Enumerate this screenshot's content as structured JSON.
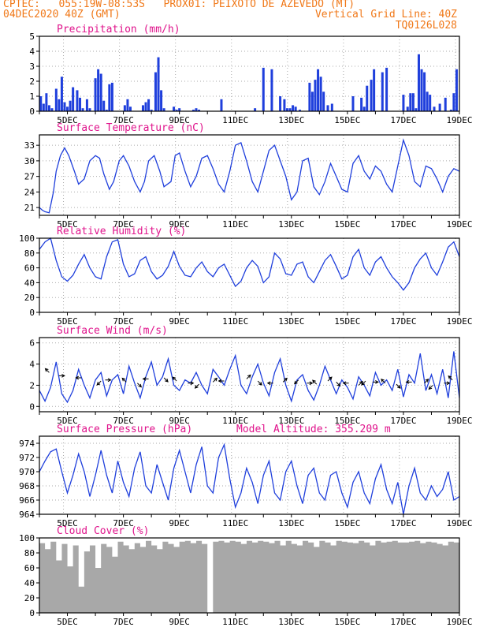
{
  "header": {
    "line1": "CPTEC:   055:19W-08:53S   PROX01: PEIXOTO DE AZEVEDO (MT)",
    "line2_left": "04DEC2020 40Z (GMT)",
    "line2_right": "Vertical Grid Line: 40Z",
    "line3_right": "TQ0126L028"
  },
  "colors": {
    "header": "#f07818",
    "title": "#e0148c",
    "series": "#1f3fdc",
    "cloud": "#a8a8a8",
    "vectors": "#000000",
    "axis": "#000000",
    "grid": "#aaaaaa"
  },
  "chart_data": [
    {
      "type": "bar",
      "title": "Precipitation (mm/h)",
      "x_tick_labels": [
        "5DEC",
        "7DEC",
        "9DEC",
        "11DEC",
        "13DEC",
        "15DEC",
        "17DEC",
        "19DEC"
      ],
      "x_tick_days": [
        5,
        7,
        9,
        11,
        13,
        15,
        17,
        19
      ],
      "xlim_days": [
        4.0,
        19.0
      ],
      "ylim": [
        0,
        5
      ],
      "y_ticks": [
        0,
        1,
        2,
        3,
        4,
        5
      ],
      "grid": true,
      "x": [
        4.05,
        4.15,
        4.25,
        4.35,
        4.45,
        4.6,
        4.7,
        4.8,
        4.9,
        5.0,
        5.1,
        5.2,
        5.35,
        5.45,
        5.55,
        5.7,
        5.8,
        6.0,
        6.1,
        6.2,
        6.3,
        6.4,
        6.5,
        6.6,
        7.05,
        7.15,
        7.25,
        7.7,
        7.8,
        7.9,
        8.0,
        8.15,
        8.25,
        8.35,
        8.45,
        8.8,
        8.9,
        9.0,
        9.5,
        9.6,
        9.7,
        10.5,
        11.7,
        12.0,
        12.3,
        12.6,
        12.75,
        12.85,
        12.95,
        13.05,
        13.15,
        13.3,
        13.65,
        13.75,
        13.85,
        13.95,
        14.05,
        14.15,
        14.3,
        14.45,
        15.2,
        15.5,
        15.6,
        15.7,
        15.85,
        15.95,
        16.25,
        16.4,
        17.0,
        17.15,
        17.25,
        17.35,
        17.45,
        17.55,
        17.65,
        17.75,
        17.85,
        17.95,
        18.1,
        18.3,
        18.5,
        18.7,
        18.8,
        18.9
      ],
      "values": [
        1.0,
        0.5,
        1.2,
        0.4,
        0.2,
        1.5,
        0.8,
        2.3,
        0.6,
        0.3,
        0.7,
        1.6,
        1.4,
        0.9,
        0.2,
        0.8,
        0.2,
        2.2,
        2.8,
        2.5,
        0.7,
        0.1,
        1.8,
        1.9,
        0.4,
        0.8,
        0.3,
        0.4,
        0.6,
        0.8,
        0.1,
        2.6,
        3.6,
        1.4,
        0.2,
        0.3,
        0.1,
        0.2,
        0.1,
        0.2,
        0.1,
        0.8,
        0.2,
        2.9,
        2.8,
        1.0,
        0.8,
        0.2,
        0.2,
        0.4,
        0.3,
        0.1,
        1.9,
        1.3,
        2.1,
        2.8,
        2.3,
        1.3,
        0.4,
        0.5,
        1.0,
        0.9,
        0.3,
        1.7,
        2.1,
        2.8,
        2.6,
        2.9,
        1.1,
        0.3,
        1.2,
        1.2,
        0.2,
        3.8,
        2.8,
        2.6,
        1.3,
        1.1,
        0.3,
        0.5,
        0.9,
        0.1,
        1.2,
        2.8
      ]
    },
    {
      "type": "line",
      "title": "Surface Temperature (nC)",
      "x_tick_labels": [
        "5DEC",
        "7DEC",
        "9DEC",
        "11DEC",
        "13DEC",
        "15DEC",
        "17DEC",
        "19DEC"
      ],
      "x_tick_days": [
        5,
        7,
        9,
        11,
        13,
        15,
        17,
        19
      ],
      "xlim_days": [
        4.0,
        19.0
      ],
      "ylim": [
        19.5,
        35
      ],
      "y_ticks": [
        21,
        24,
        27,
        30,
        33
      ],
      "grid": true,
      "x": [
        4.0,
        4.1,
        4.2,
        4.35,
        4.5,
        4.6,
        4.75,
        4.9,
        5.05,
        5.25,
        5.4,
        5.6,
        5.8,
        6.0,
        6.15,
        6.3,
        6.5,
        6.65,
        6.85,
        7.0,
        7.2,
        7.4,
        7.6,
        7.75,
        7.9,
        8.1,
        8.3,
        8.45,
        8.7,
        8.85,
        9.0,
        9.2,
        9.4,
        9.6,
        9.8,
        10.0,
        10.2,
        10.4,
        10.6,
        10.8,
        11.0,
        11.2,
        11.4,
        11.6,
        11.8,
        12.0,
        12.2,
        12.4,
        12.6,
        12.8,
        13.0,
        13.2,
        13.4,
        13.6,
        13.8,
        14.0,
        14.2,
        14.4,
        14.6,
        14.8,
        15.0,
        15.2,
        15.4,
        15.6,
        15.8,
        16.0,
        16.2,
        16.4,
        16.6,
        16.8,
        17.0,
        17.2,
        17.4,
        17.6,
        17.8,
        18.0,
        18.2,
        18.4,
        18.6,
        18.8,
        19.0
      ],
      "values": [
        21.0,
        20.5,
        20.2,
        20.0,
        24.0,
        28.0,
        31.0,
        32.5,
        31.0,
        28.0,
        25.5,
        26.5,
        30.0,
        31.0,
        30.5,
        27.5,
        24.5,
        26.0,
        30.0,
        31.0,
        29.0,
        26.0,
        24.0,
        26.0,
        30.0,
        31.0,
        28.0,
        25.0,
        26.0,
        31.0,
        31.5,
        28.0,
        25.0,
        27.0,
        30.5,
        31.0,
        28.5,
        25.5,
        24.0,
        28.0,
        33.0,
        33.5,
        30.0,
        26.0,
        24.0,
        28.0,
        32.0,
        33.0,
        30.0,
        27.0,
        22.5,
        24.0,
        30.0,
        30.5,
        25.0,
        23.5,
        26.0,
        29.5,
        27.0,
        24.5,
        24.0,
        29.5,
        31.0,
        28.0,
        26.5,
        29.0,
        28.0,
        25.5,
        24.0,
        29.0,
        34.0,
        31.0,
        26.0,
        25.0,
        29.0,
        28.5,
        26.5,
        24.0,
        27.0,
        28.5,
        28.0
      ]
    },
    {
      "type": "line",
      "title": "Relative Humidity (%)",
      "x_tick_labels": [
        "5DEC",
        "7DEC",
        "9DEC",
        "11DEC",
        "13DEC",
        "15DEC",
        "17DEC",
        "19DEC"
      ],
      "x_tick_days": [
        5,
        7,
        9,
        11,
        13,
        15,
        17,
        19
      ],
      "xlim_days": [
        4.0,
        19.0
      ],
      "ylim": [
        0,
        100
      ],
      "y_ticks": [
        0,
        20,
        40,
        60,
        80,
        100
      ],
      "grid": true,
      "x": [
        4.0,
        4.2,
        4.4,
        4.6,
        4.8,
        5.0,
        5.2,
        5.4,
        5.6,
        5.8,
        6.0,
        6.2,
        6.4,
        6.6,
        6.8,
        7.0,
        7.2,
        7.4,
        7.6,
        7.8,
        8.0,
        8.2,
        8.4,
        8.6,
        8.8,
        9.0,
        9.2,
        9.4,
        9.6,
        9.8,
        10.0,
        10.2,
        10.4,
        10.6,
        10.8,
        11.0,
        11.2,
        11.4,
        11.6,
        11.8,
        12.0,
        12.2,
        12.4,
        12.6,
        12.8,
        13.0,
        13.2,
        13.4,
        13.6,
        13.8,
        14.0,
        14.2,
        14.4,
        14.6,
        14.8,
        15.0,
        15.2,
        15.4,
        15.6,
        15.8,
        16.0,
        16.2,
        16.4,
        16.6,
        16.8,
        17.0,
        17.2,
        17.4,
        17.6,
        17.8,
        18.0,
        18.2,
        18.4,
        18.6,
        18.8,
        19.0
      ],
      "values": [
        85.0,
        95.0,
        100.0,
        70.0,
        48.0,
        42.0,
        50.0,
        65.0,
        78.0,
        60.0,
        48.0,
        45.0,
        75.0,
        95.0,
        98.0,
        65.0,
        48.0,
        52.0,
        70.0,
        75.0,
        55.0,
        45.0,
        50.0,
        62.0,
        82.0,
        62.0,
        50.0,
        48.0,
        60.0,
        68.0,
        55.0,
        48.0,
        60.0,
        65.0,
        50.0,
        35.0,
        42.0,
        60.0,
        70.0,
        62.0,
        40.0,
        48.0,
        80.0,
        72.0,
        52.0,
        50.0,
        65.0,
        68.0,
        48.0,
        40.0,
        55.0,
        70.0,
        78.0,
        62.0,
        45.0,
        50.0,
        75.0,
        85.0,
        60.0,
        50.0,
        68.0,
        75.0,
        60.0,
        48.0,
        40.0,
        30.0,
        40.0,
        60.0,
        72.0,
        80.0,
        60.0,
        50.0,
        68.0,
        88.0,
        95.0,
        75.0
      ]
    },
    {
      "type": "line",
      "title": "Surface Wind (m/s)",
      "x_tick_labels": [
        "5DEC",
        "7DEC",
        "9DEC",
        "11DEC",
        "13DEC",
        "15DEC",
        "17DEC",
        "19DEC"
      ],
      "x_tick_days": [
        5,
        7,
        9,
        11,
        13,
        15,
        17,
        19
      ],
      "xlim_days": [
        4.0,
        19.0
      ],
      "ylim": [
        -0.5,
        6.5
      ],
      "y_ticks": [
        0,
        2,
        4,
        6
      ],
      "grid": true,
      "x": [
        4.0,
        4.2,
        4.4,
        4.6,
        4.8,
        5.0,
        5.2,
        5.4,
        5.6,
        5.8,
        6.0,
        6.2,
        6.4,
        6.6,
        6.8,
        7.0,
        7.2,
        7.4,
        7.6,
        7.8,
        8.0,
        8.2,
        8.4,
        8.6,
        8.8,
        9.0,
        9.2,
        9.4,
        9.6,
        9.8,
        10.0,
        10.2,
        10.4,
        10.6,
        10.8,
        11.0,
        11.2,
        11.4,
        11.6,
        11.8,
        12.0,
        12.2,
        12.4,
        12.6,
        12.8,
        13.0,
        13.2,
        13.4,
        13.6,
        13.8,
        14.0,
        14.2,
        14.4,
        14.6,
        14.8,
        15.0,
        15.2,
        15.4,
        15.6,
        15.8,
        16.0,
        16.2,
        16.4,
        16.6,
        16.8,
        17.0,
        17.2,
        17.4,
        17.6,
        17.8,
        18.0,
        18.2,
        18.4,
        18.6,
        18.8,
        19.0
      ],
      "values": [
        1.5,
        0.5,
        1.8,
        4.2,
        1.2,
        0.4,
        1.5,
        3.5,
        2.0,
        0.8,
        2.5,
        3.2,
        1.0,
        2.5,
        3.0,
        1.2,
        3.8,
        2.2,
        0.8,
        2.8,
        4.2,
        2.0,
        2.8,
        4.5,
        2.0,
        1.5,
        2.5,
        2.2,
        3.2,
        2.0,
        1.2,
        3.5,
        2.8,
        2.0,
        3.5,
        4.8,
        2.0,
        1.2,
        2.8,
        4.0,
        2.2,
        1.0,
        3.2,
        4.5,
        2.0,
        0.5,
        2.5,
        3.0,
        1.5,
        0.6,
        2.0,
        3.8,
        2.5,
        1.2,
        2.5,
        1.8,
        0.7,
        2.8,
        2.0,
        1.0,
        3.2,
        2.0,
        2.5,
        1.5,
        3.5,
        0.9,
        3.0,
        2.2,
        5.0,
        1.5,
        3.0,
        1.2,
        3.5,
        0.8,
        5.2,
        0.8
      ],
      "vectors": {
        "x": [
          4.35,
          4.7,
          5.5,
          6.2,
          6.35,
          7.1,
          7.5,
          7.9,
          8.45,
          8.9,
          9.3,
          9.7,
          10.2,
          10.6,
          11.4,
          11.8,
          12.35,
          12.7,
          13.25,
          13.55,
          13.9,
          14.3,
          14.6,
          15.05,
          15.4,
          15.65,
          15.9,
          16.35,
          16.75,
          17.3,
          17.75,
          18.05,
          18.45,
          18.75
        ],
        "y": [
          3.2,
          2.9,
          2.7,
          2.4,
          2.5,
          2.3,
          2.2,
          2.6,
          2.7,
          2.4,
          2.2,
          2.1,
          2.3,
          2.4,
          2.6,
          2.4,
          2.2,
          2.3,
          2.5,
          2.2,
          2.1,
          2.4,
          2.3,
          2.2,
          2.0,
          2.4,
          2.3,
          2.2,
          2.1,
          2.3,
          2.2,
          2.0,
          2.2,
          2.5
        ],
        "u": [
          -1,
          1,
          -1,
          -1,
          1,
          -1,
          1,
          -1,
          1,
          -1,
          1,
          -1,
          1,
          -1,
          1,
          1,
          -1,
          1,
          -1,
          1,
          -1,
          1,
          1,
          -1,
          1,
          -1,
          1,
          -1,
          1,
          -1,
          1,
          -1,
          1,
          -1
        ],
        "v": [
          1,
          0,
          0,
          -1,
          0,
          1,
          -1,
          0,
          -1,
          1,
          0,
          -1,
          1,
          0,
          1,
          -1,
          0,
          1,
          -1,
          0,
          1,
          1,
          -1,
          0,
          1,
          -1,
          0,
          1,
          -1,
          0,
          1,
          -1,
          0,
          1
        ]
      }
    },
    {
      "type": "line",
      "title": "Surface Pressure (hPa)",
      "annotation": "Model Altitude: 355.209 m",
      "x_tick_labels": [
        "5DEC",
        "7DEC",
        "9DEC",
        "11DEC",
        "13DEC",
        "15DEC",
        "17DEC",
        "19DEC"
      ],
      "x_tick_days": [
        5,
        7,
        9,
        11,
        13,
        15,
        17,
        19
      ],
      "xlim_days": [
        4.0,
        19.0
      ],
      "ylim": [
        964,
        975
      ],
      "y_ticks": [
        964,
        966,
        968,
        970,
        972,
        974
      ],
      "grid": true,
      "x": [
        4.0,
        4.2,
        4.4,
        4.6,
        4.8,
        5.0,
        5.2,
        5.4,
        5.6,
        5.8,
        6.0,
        6.2,
        6.4,
        6.6,
        6.8,
        7.0,
        7.2,
        7.4,
        7.6,
        7.8,
        8.0,
        8.2,
        8.4,
        8.6,
        8.8,
        9.0,
        9.2,
        9.4,
        9.6,
        9.8,
        10.0,
        10.2,
        10.4,
        10.6,
        10.8,
        11.0,
        11.2,
        11.4,
        11.6,
        11.8,
        12.0,
        12.2,
        12.4,
        12.6,
        12.8,
        13.0,
        13.2,
        13.4,
        13.6,
        13.8,
        14.0,
        14.2,
        14.4,
        14.6,
        14.8,
        15.0,
        15.2,
        15.4,
        15.6,
        15.8,
        16.0,
        16.2,
        16.4,
        16.6,
        16.8,
        17.0,
        17.2,
        17.4,
        17.6,
        17.8,
        18.0,
        18.2,
        18.4,
        18.6,
        18.8,
        19.0
      ],
      "values": [
        970.0,
        971.5,
        972.8,
        973.2,
        970.0,
        967.0,
        969.5,
        972.5,
        970.0,
        966.5,
        969.5,
        973.0,
        969.5,
        967.0,
        971.5,
        968.5,
        966.5,
        970.5,
        972.8,
        968.0,
        967.0,
        971.0,
        968.5,
        966.0,
        970.5,
        973.0,
        970.0,
        967.0,
        971.0,
        973.5,
        968.0,
        967.0,
        972.0,
        973.8,
        969.0,
        965.0,
        967.0,
        970.5,
        968.5,
        965.5,
        969.5,
        971.5,
        967.0,
        966.0,
        970.0,
        971.5,
        968.0,
        965.5,
        969.5,
        970.5,
        967.0,
        966.0,
        969.5,
        970.0,
        967.0,
        965.0,
        968.5,
        970.0,
        967.0,
        965.5,
        969.0,
        971.0,
        967.5,
        965.5,
        968.5,
        964.0,
        968.0,
        970.5,
        967.0,
        966.0,
        968.0,
        966.5,
        967.5,
        970.0,
        966.0,
        966.5
      ]
    },
    {
      "type": "area",
      "title": "Cloud Cover (%)",
      "x_tick_labels": [
        "5DEC",
        "7DEC",
        "9DEC",
        "11DEC",
        "13DEC",
        "15DEC",
        "17DEC",
        "19DEC"
      ],
      "x_tick_days": [
        5,
        7,
        9,
        11,
        13,
        15,
        17,
        19
      ],
      "xlim_days": [
        4.0,
        19.0
      ],
      "ylim": [
        0,
        100
      ],
      "y_ticks": [
        0,
        20,
        40,
        60,
        80,
        100
      ],
      "grid": false,
      "x": [
        4.0,
        4.2,
        4.4,
        4.6,
        4.8,
        5.0,
        5.2,
        5.4,
        5.6,
        5.8,
        6.0,
        6.2,
        6.4,
        6.6,
        6.8,
        7.0,
        7.2,
        7.4,
        7.6,
        7.8,
        8.0,
        8.2,
        8.4,
        8.6,
        8.8,
        9.0,
        9.2,
        9.4,
        9.6,
        9.8,
        10.0,
        10.2,
        10.4,
        10.6,
        10.8,
        11.0,
        11.2,
        11.4,
        11.6,
        11.8,
        12.0,
        12.2,
        12.4,
        12.6,
        12.8,
        13.0,
        13.2,
        13.4,
        13.6,
        13.8,
        14.0,
        14.2,
        14.4,
        14.6,
        14.8,
        15.0,
        15.2,
        15.4,
        15.6,
        15.8,
        16.0,
        16.2,
        16.4,
        16.6,
        16.8,
        17.0,
        17.2,
        17.4,
        17.6,
        17.8,
        18.0,
        18.2,
        18.4,
        18.6,
        18.8,
        19.0
      ],
      "values": [
        93.0,
        85.0,
        95.0,
        70.0,
        92.0,
        62.0,
        90.0,
        35.0,
        82.0,
        90.0,
        60.0,
        92.0,
        88.0,
        75.0,
        95.0,
        90.0,
        85.0,
        93.0,
        88.0,
        96.0,
        90.0,
        85.0,
        95.0,
        92.0,
        88.0,
        95.0,
        96.0,
        93.0,
        96.0,
        92.0,
        0.0,
        95.0,
        96.0,
        94.0,
        96.0,
        95.0,
        92.0,
        96.0,
        94.0,
        96.0,
        95.0,
        93.0,
        96.0,
        90.0,
        96.0,
        92.0,
        90.0,
        96.0,
        94.0,
        88.0,
        96.0,
        94.0,
        90.0,
        96.0,
        95.0,
        94.0,
        93.0,
        96.0,
        94.0,
        90.0,
        96.0,
        94.0,
        95.0,
        96.0,
        94.0,
        94.0,
        95.0,
        96.0,
        93.0,
        95.0,
        94.0,
        92.0,
        90.0,
        95.0,
        94.0,
        93.0
      ]
    }
  ]
}
